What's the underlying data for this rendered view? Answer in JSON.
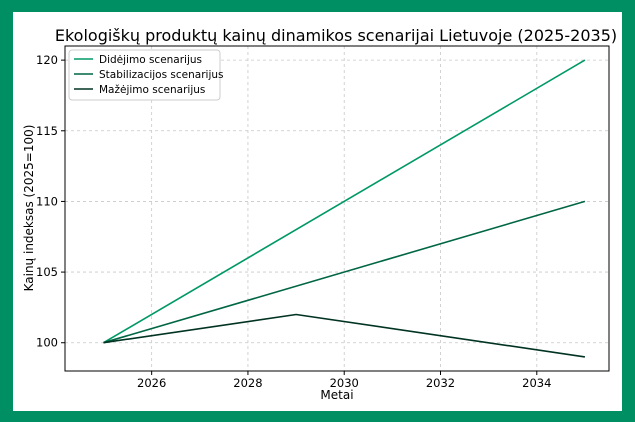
{
  "chart_data": {
    "type": "line",
    "title": "Ekologiškų produktų kainų dinamikos scenarijai Lietuvoje (2025-2035)",
    "xlabel": "Metai",
    "ylabel": "Kainų indeksas (2025=100)",
    "x": [
      2025,
      2029,
      2035
    ],
    "xlim": [
      2024.2,
      2035.5
    ],
    "ylim": [
      98.0,
      121.0
    ],
    "xticks": [
      2026,
      2028,
      2030,
      2032,
      2034
    ],
    "yticks": [
      100,
      105,
      110,
      115,
      120
    ],
    "grid": true,
    "legend_position": "top-left",
    "series": [
      {
        "name": "Didėjimo scenarijus",
        "color": "#009966",
        "points": [
          [
            2025,
            100
          ],
          [
            2035,
            120
          ]
        ]
      },
      {
        "name": "Stabilizacijos scenarijus",
        "color": "#006644",
        "points": [
          [
            2025,
            100
          ],
          [
            2035,
            110
          ]
        ]
      },
      {
        "name": "Mažėjimo scenarijus",
        "color": "#003322",
        "points": [
          [
            2025,
            100
          ],
          [
            2029,
            102
          ],
          [
            2035,
            99
          ]
        ]
      }
    ]
  }
}
